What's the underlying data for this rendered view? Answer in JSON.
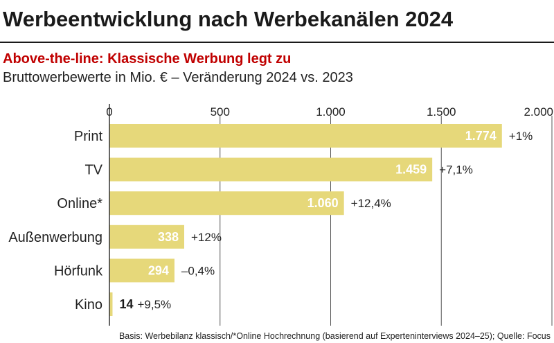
{
  "title": "Werbeentwicklung nach Werbekanälen 2024",
  "subtitle": "Above-the-line: Klassische Werbung legt zu",
  "subtitle2": "Bruttowerbewerte in Mio. € – Veränderung 2024 vs. 2023",
  "footnote": "Basis: Werbebilanz klassisch/*Online Hochrechnung (basierend auf Experteninterviews 2024–25); Quelle: Focus",
  "chart_data": {
    "type": "bar",
    "orientation": "horizontal",
    "categories": [
      "Print",
      "TV",
      "Online*",
      "Außenwerbung",
      "Hörfunk",
      "Kino"
    ],
    "values": [
      1774,
      1459,
      1060,
      338,
      294,
      14
    ],
    "value_labels": [
      "1.774",
      "1.459",
      "1.060",
      "338",
      "294",
      "14"
    ],
    "change_labels": [
      "+1%",
      "+7,1%",
      "+12,4%",
      "+12%",
      "–0,4%",
      "+9,5%"
    ],
    "xlim": [
      0,
      2000
    ],
    "ticks": [
      0,
      500,
      1000,
      1500,
      2000
    ],
    "tick_labels": [
      "0",
      "500",
      "1.000",
      "1.500",
      "2.000"
    ],
    "axis_position": "top",
    "grid": true,
    "bar_color": "#e6d87a"
  }
}
